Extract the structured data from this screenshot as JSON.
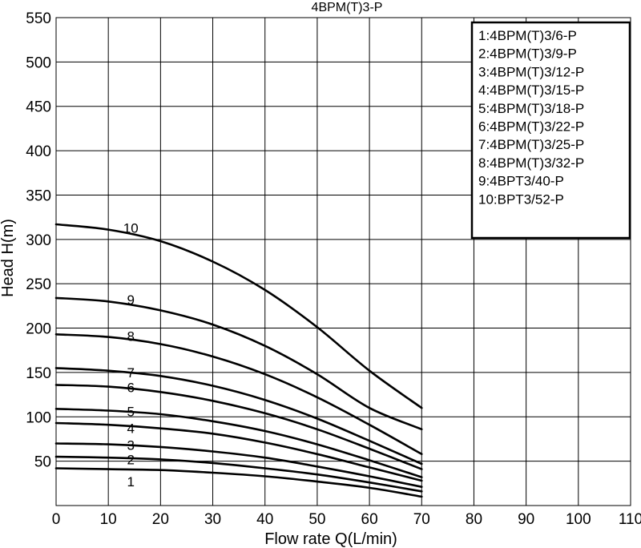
{
  "chart_data": {
    "type": "line",
    "title": "4BPM(T)3-P",
    "xlabel": "Flow rate Q(L/min)",
    "ylabel": "Head H(m)",
    "xlim": [
      0,
      110
    ],
    "ylim": [
      0,
      550
    ],
    "x_ticks": [
      "0",
      "10",
      "20",
      "30",
      "40",
      "50",
      "60",
      "70",
      "80",
      "90",
      "100",
      "110"
    ],
    "y_ticks": [
      "50",
      "100",
      "150",
      "200",
      "250",
      "300",
      "350",
      "400",
      "450",
      "500",
      "550"
    ],
    "grid": true,
    "legend_position": "top-right",
    "legend": [
      "1:4BPM(T)3/6-P",
      "2:4BPM(T)3/9-P",
      "3:4BPM(T)3/12-P",
      "4:4BPM(T)3/15-P",
      "5:4BPM(T)3/18-P",
      "6:4BPM(T)3/22-P",
      "7:4BPM(T)3/25-P",
      "8:4BPM(T)3/32-P",
      "9:4BPT3/40-P",
      "10:BPT3/52-P"
    ],
    "x": [
      0,
      10,
      20,
      30,
      40,
      50,
      60,
      70
    ],
    "series": [
      {
        "name": "1",
        "label_at": [
          14,
          27
        ],
        "values": [
          42,
          41,
          40,
          37,
          33,
          27,
          20,
          10
        ]
      },
      {
        "name": "2",
        "label_at": [
          14,
          52
        ],
        "values": [
          55,
          54,
          52,
          48,
          42,
          35,
          26,
          16
        ]
      },
      {
        "name": "3",
        "label_at": [
          14,
          68
        ],
        "values": [
          70,
          69,
          66,
          61,
          54,
          44,
          33,
          21
        ]
      },
      {
        "name": "4",
        "label_at": [
          14,
          87
        ],
        "values": [
          93,
          91,
          87,
          81,
          71,
          58,
          43,
          28
        ]
      },
      {
        "name": "5",
        "label_at": [
          14,
          106
        ],
        "values": [
          109,
          107,
          103,
          95,
          84,
          69,
          51,
          32
        ]
      },
      {
        "name": "6",
        "label_at": [
          14,
          133
        ],
        "values": [
          136,
          134,
          128,
          118,
          104,
          86,
          64,
          41
        ]
      },
      {
        "name": "7",
        "label_at": [
          14,
          150
        ],
        "values": [
          155,
          152,
          146,
          135,
          119,
          98,
          73,
          47
        ]
      },
      {
        "name": "8",
        "label_at": [
          14,
          191
        ],
        "values": [
          193,
          190,
          182,
          168,
          148,
          122,
          91,
          58
        ]
      },
      {
        "name": "9",
        "label_at": [
          14,
          232
        ],
        "values": [
          234,
          230,
          220,
          204,
          180,
          148,
          110,
          86
        ]
      },
      {
        "name": "10",
        "label_at": [
          14,
          313
        ],
        "values": [
          317,
          311,
          298,
          275,
          243,
          201,
          152,
          110
        ]
      }
    ]
  }
}
